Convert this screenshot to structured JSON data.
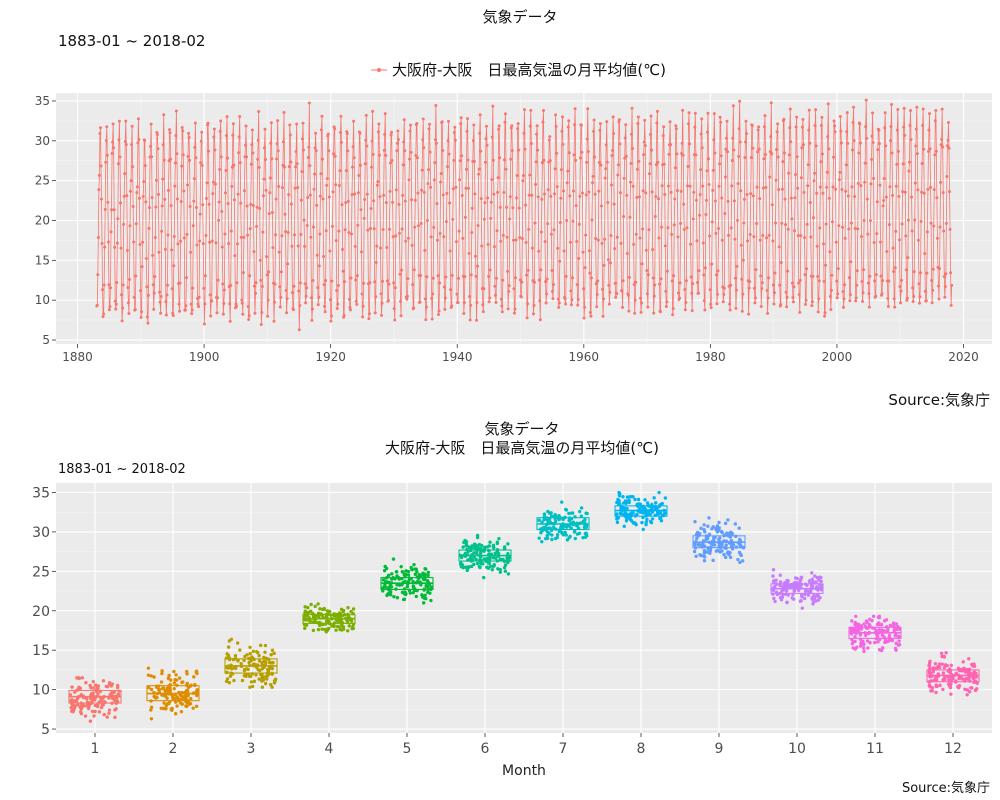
{
  "page": {
    "title": "気象データ",
    "range_label": "1883-01 ~ 2018-02",
    "source": "Source:気象庁",
    "subtitle": "大阪府-大阪　日最高気温の月平均値(℃)"
  },
  "chart_data": [
    {
      "type": "line",
      "title": "気象データ",
      "subtitle": "1883-01 ~ 2018-02",
      "legend": "top",
      "series": [
        {
          "name": "大阪府-大阪　日最高気温の月平均値(℃)",
          "color": "#F8766D"
        }
      ],
      "x_start": "1883-01",
      "x_end": "2018-02",
      "xlim": [
        1876.6,
        2024.5
      ],
      "ylim": [
        4.5,
        36
      ],
      "x_ticks": [
        1880,
        1900,
        1920,
        1940,
        1960,
        1980,
        2000,
        2020
      ],
      "y_ticks": [
        5,
        10,
        15,
        20,
        25,
        30,
        35
      ],
      "monthly_pattern": [
        9.1,
        9.5,
        13.0,
        19.0,
        23.5,
        27.0,
        31.0,
        32.7,
        28.7,
        22.8,
        17.2,
        11.8
      ],
      "extremes": {
        "min": 5.8,
        "max": 35.1
      },
      "grid": true
    },
    {
      "type": "box",
      "title": "気象データ",
      "subtitle": "大阪府-大阪　日最高気温の月平均値(℃)",
      "xlabel": "Month",
      "ylabel": "",
      "ylim": [
        4.5,
        36.2
      ],
      "y_ticks": [
        5,
        10,
        15,
        20,
        25,
        30,
        35
      ],
      "categories": [
        "1",
        "2",
        "3",
        "4",
        "5",
        "6",
        "7",
        "8",
        "9",
        "10",
        "11",
        "12"
      ],
      "colors": [
        "#F8766D",
        "#DE8C00",
        "#B79F00",
        "#7CAE00",
        "#00BA38",
        "#00C08B",
        "#00BFC4",
        "#00B4F0",
        "#619CFF",
        "#C77CFF",
        "#F564E3",
        "#FF64B0"
      ],
      "boxes": [
        {
          "q1": 8.3,
          "median": 9.1,
          "q3": 9.9,
          "min": 6.0,
          "max": 11.5
        },
        {
          "q1": 8.6,
          "median": 9.5,
          "q3": 10.5,
          "min": 6.3,
          "max": 13.1
        },
        {
          "q1": 12.1,
          "median": 13.0,
          "q3": 13.9,
          "min": 10.3,
          "max": 16.5
        },
        {
          "q1": 18.4,
          "median": 19.0,
          "q3": 19.5,
          "min": 16.5,
          "max": 23.4
        },
        {
          "q1": 22.7,
          "median": 23.5,
          "q3": 24.2,
          "min": 21.0,
          "max": 27.0
        },
        {
          "q1": 26.3,
          "median": 27.0,
          "q3": 27.7,
          "min": 23.4,
          "max": 29.8
        },
        {
          "q1": 30.3,
          "median": 31.0,
          "q3": 31.8,
          "min": 27.6,
          "max": 34.0
        },
        {
          "q1": 32.0,
          "median": 32.7,
          "q3": 33.3,
          "min": 29.5,
          "max": 35.3
        },
        {
          "q1": 28.0,
          "median": 28.7,
          "q3": 29.5,
          "min": 25.2,
          "max": 32.0
        },
        {
          "q1": 22.2,
          "median": 22.8,
          "q3": 23.4,
          "min": 19.7,
          "max": 25.2
        },
        {
          "q1": 16.5,
          "median": 17.2,
          "q3": 17.9,
          "min": 13.3,
          "max": 19.3
        },
        {
          "q1": 11.0,
          "median": 11.8,
          "q3": 12.5,
          "min": 8.9,
          "max": 14.9
        }
      ],
      "grid": true
    }
  ]
}
